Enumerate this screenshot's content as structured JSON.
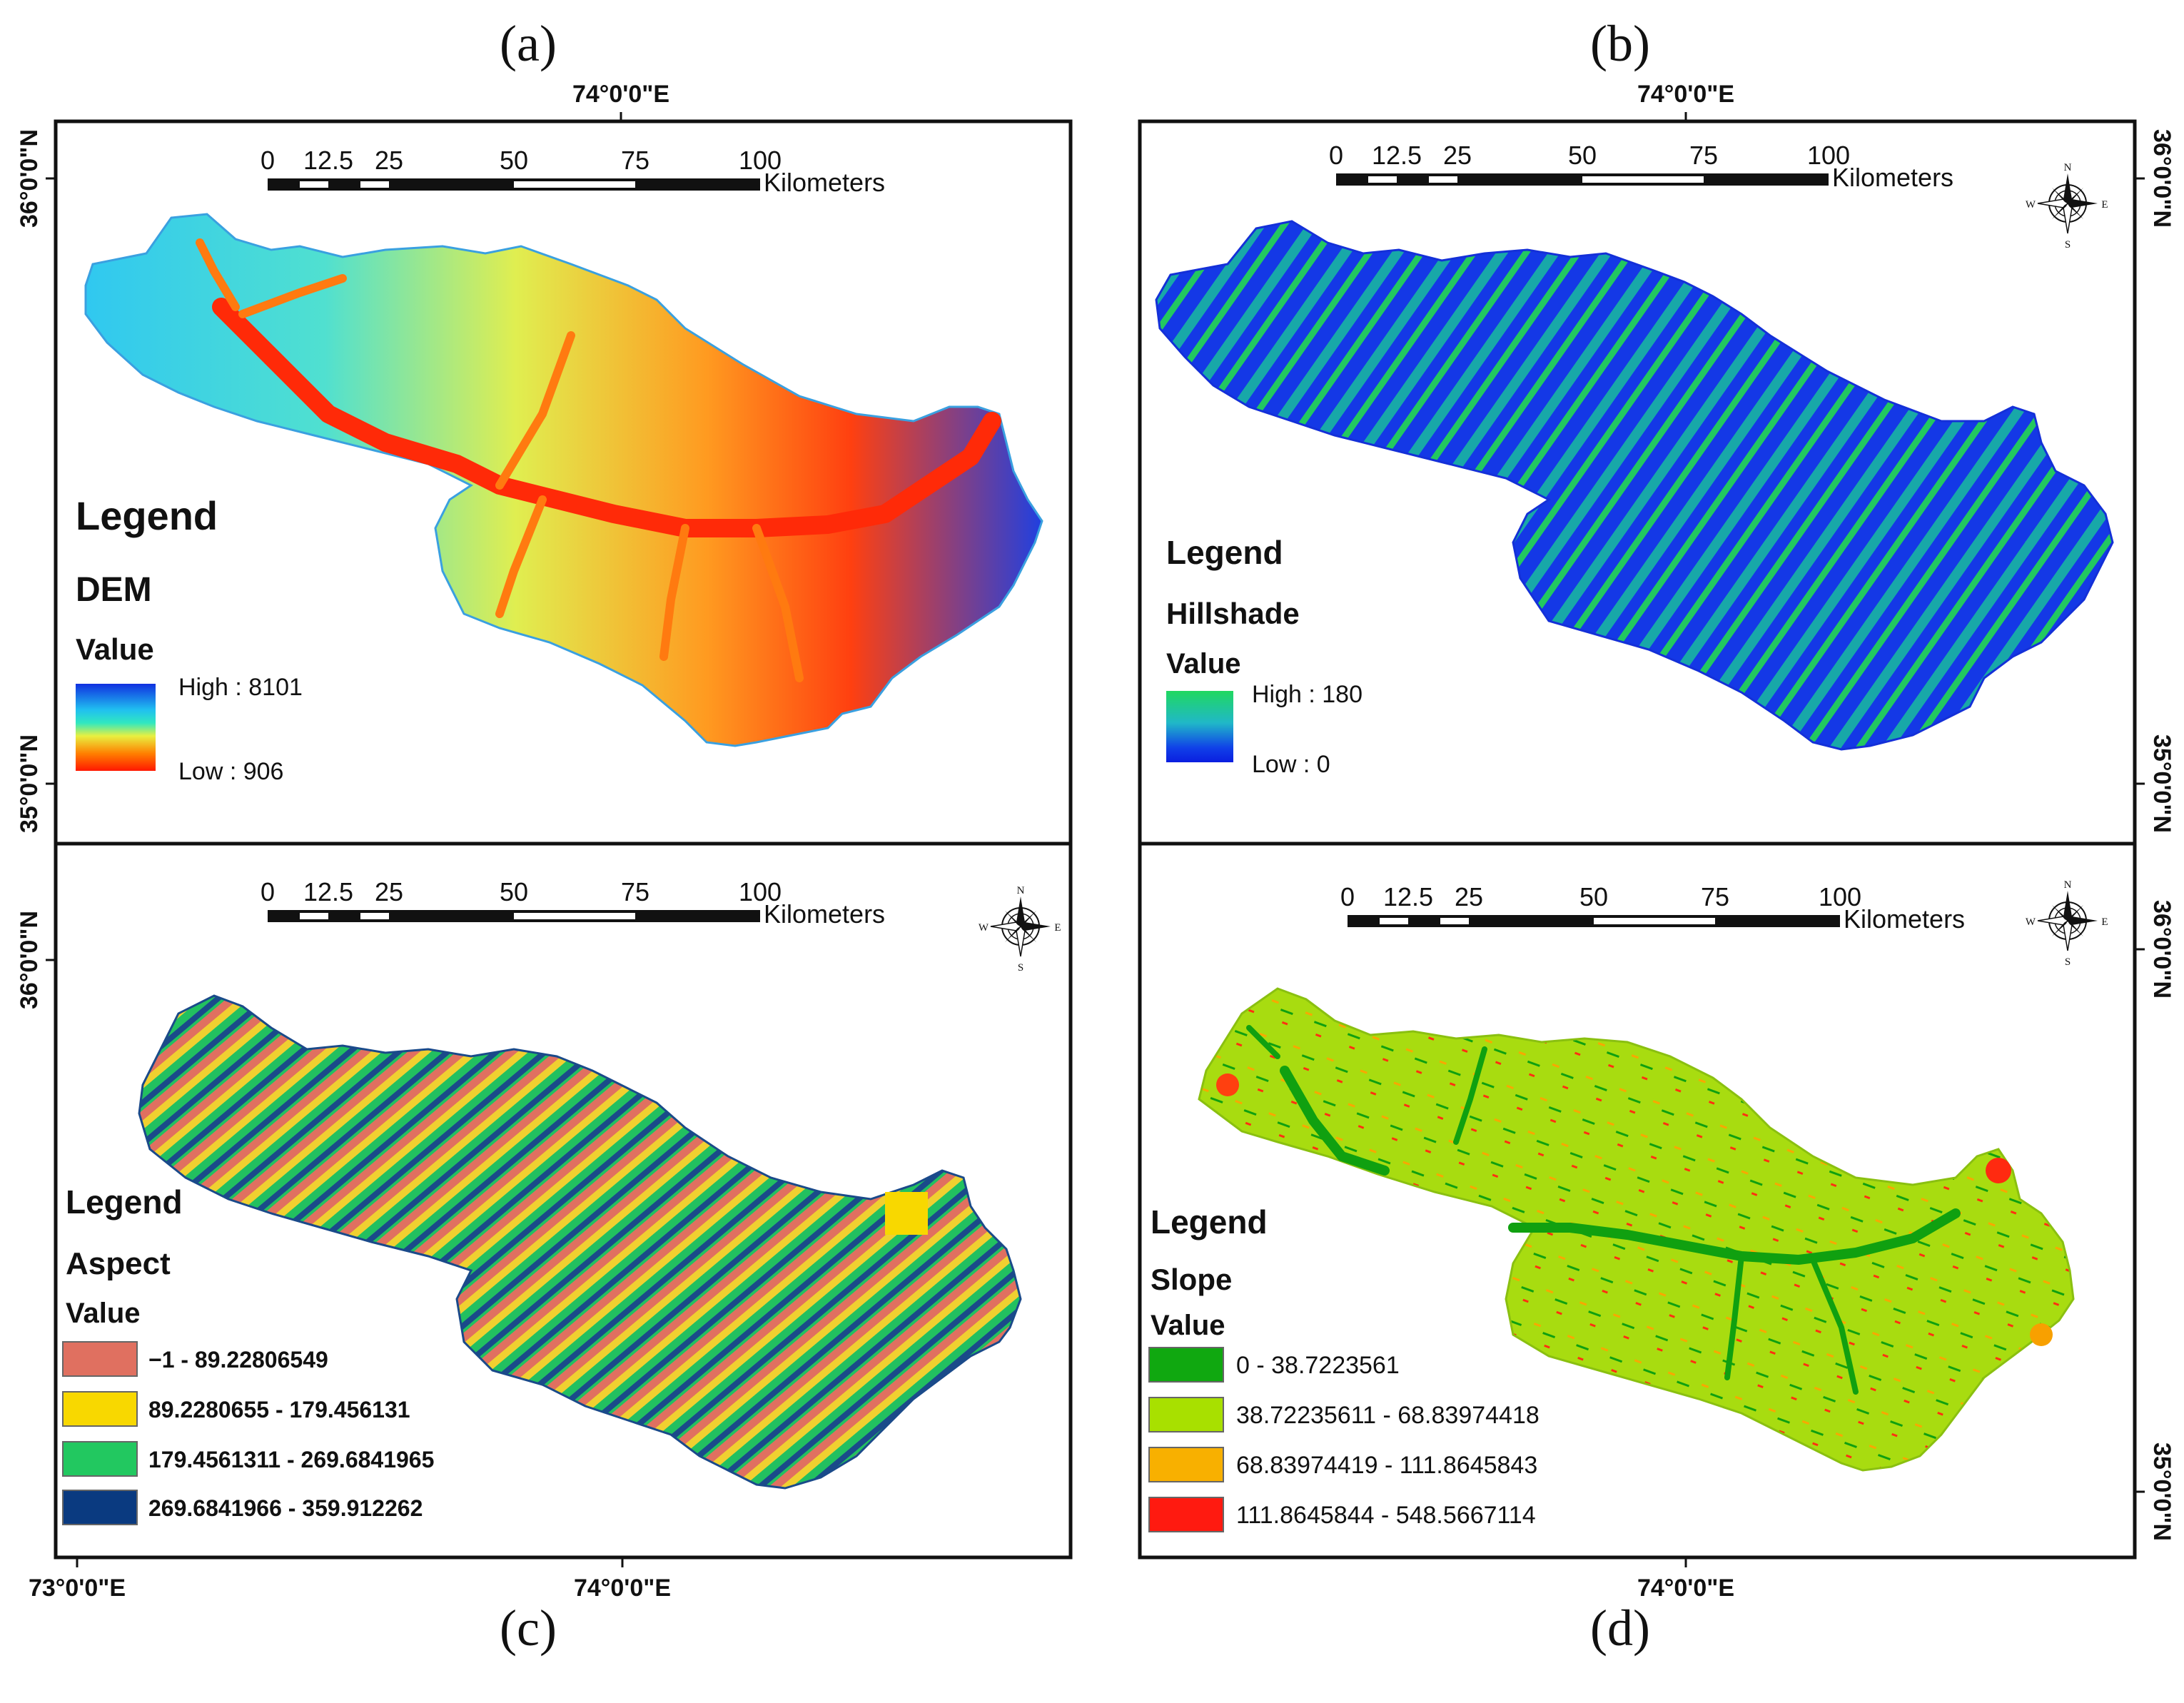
{
  "panel_labels": [
    "(a)",
    "(b)",
    "(c)",
    "(d)"
  ],
  "coords": {
    "top_lon": "74°0'0\"E",
    "lat_36": "36°0'0\"N",
    "lat_35": "35°0'0\"N",
    "bottom_lon_73": "73°0'0\"E",
    "bottom_lon_74": "74°0'0\"E"
  },
  "scale_bar": {
    "ticks": [
      "0",
      "12.5",
      "25",
      "50",
      "75",
      "100"
    ],
    "unit": "Kilometers"
  },
  "compass": {
    "n": "N",
    "s": "S",
    "e": "E",
    "w": "W"
  },
  "panels": {
    "a": {
      "legend_title": "Legend",
      "layer": "DEM",
      "value_label": "Value",
      "high_label": "High : 8101",
      "low_label": "Low : 906",
      "ramp_colors": [
        "#1030e0",
        "#20c0f0",
        "#30e8c0",
        "#e8f040",
        "#ff8000",
        "#ff1800"
      ]
    },
    "b": {
      "legend_title": "Legend",
      "layer": "Hillshade",
      "value_label": "Value",
      "high_label": "High : 180",
      "low_label": "Low : 0",
      "ramp_colors": [
        "#20d860",
        "#20b8c8",
        "#1040e8",
        "#0a1ee0"
      ]
    },
    "c": {
      "legend_title": "Legend",
      "layer": "Aspect",
      "value_label": "Value",
      "classes": [
        {
          "label": "−1 - 89.22806549",
          "color": "#e07060"
        },
        {
          "label": "89.2280655 - 179.456131",
          "color": "#f8d800"
        },
        {
          "label": "179.4561311 - 269.6841965",
          "color": "#22c860"
        },
        {
          "label": "269.6841966 - 359.912262",
          "color": "#0a3a80"
        }
      ]
    },
    "d": {
      "legend_title": "Legend",
      "layer": "Slope",
      "value_label": "Value",
      "classes": [
        {
          "label": "0 - 38.7223561",
          "color": "#10a810"
        },
        {
          "label": "38.72235611 - 68.83974418",
          "color": "#a8e000"
        },
        {
          "label": "68.83974419 - 111.8645843",
          "color": "#f8b000"
        },
        {
          "label": "111.8645844 - 548.5667114",
          "color": "#ff1a10"
        }
      ]
    }
  }
}
